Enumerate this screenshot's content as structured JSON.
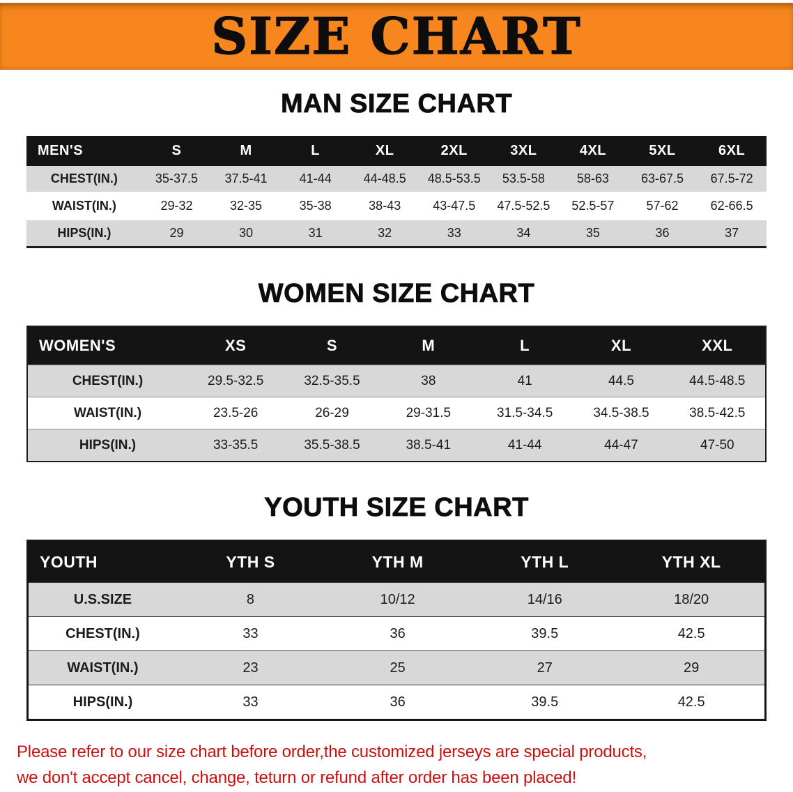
{
  "banner": {
    "title": "SIZE CHART"
  },
  "colors": {
    "banner_bg": "#F6861D",
    "table_header_bg": "#141414",
    "row_alt_bg": "#D8D8D8",
    "disclaimer_text": "#CC1010"
  },
  "chart_data": [
    {
      "type": "table",
      "title": "MAN SIZE CHART",
      "columns": [
        "MEN'S",
        "S",
        "M",
        "L",
        "XL",
        "2XL",
        "3XL",
        "4XL",
        "5XL",
        "6XL"
      ],
      "rows": [
        [
          "CHEST(IN.)",
          "35-37.5",
          "37.5-41",
          "41-44",
          "44-48.5",
          "48.5-53.5",
          "53.5-58",
          "58-63",
          "63-67.5",
          "67.5-72"
        ],
        [
          "WAIST(IN.)",
          "29-32",
          "32-35",
          "35-38",
          "38-43",
          "43-47.5",
          "47.5-52.5",
          "52.5-57",
          "57-62",
          "62-66.5"
        ],
        [
          "HIPS(IN.)",
          "29",
          "30",
          "31",
          "32",
          "33",
          "34",
          "35",
          "36",
          "37"
        ]
      ]
    },
    {
      "type": "table",
      "title": "WOMEN SIZE CHART",
      "columns": [
        "WOMEN'S",
        "XS",
        "S",
        "M",
        "L",
        "XL",
        "XXL"
      ],
      "rows": [
        [
          "CHEST(IN.)",
          "29.5-32.5",
          "32.5-35.5",
          "38",
          "41",
          "44.5",
          "44.5-48.5"
        ],
        [
          "WAIST(IN.)",
          "23.5-26",
          "26-29",
          "29-31.5",
          "31.5-34.5",
          "34.5-38.5",
          "38.5-42.5"
        ],
        [
          "HIPS(IN.)",
          "33-35.5",
          "35.5-38.5",
          "38.5-41",
          "41-44",
          "44-47",
          "47-50"
        ]
      ]
    },
    {
      "type": "table",
      "title": "YOUTH SIZE CHART",
      "columns": [
        "YOUTH",
        "YTH S",
        "YTH M",
        "YTH L",
        "YTH XL"
      ],
      "rows": [
        [
          "U.S.SIZE",
          "8",
          "10/12",
          "14/16",
          "18/20"
        ],
        [
          "CHEST(IN.)",
          "33",
          "36",
          "39.5",
          "42.5"
        ],
        [
          "WAIST(IN.)",
          "23",
          "25",
          "27",
          "29"
        ],
        [
          "HIPS(IN.)",
          "33",
          "36",
          "39.5",
          "42.5"
        ]
      ]
    }
  ],
  "disclaimer": {
    "line1": "Please refer to our size chart before order,the customized jerseys are special products,",
    "line2": "we don't accept cancel, change, teturn or refund after order has been placed!"
  }
}
